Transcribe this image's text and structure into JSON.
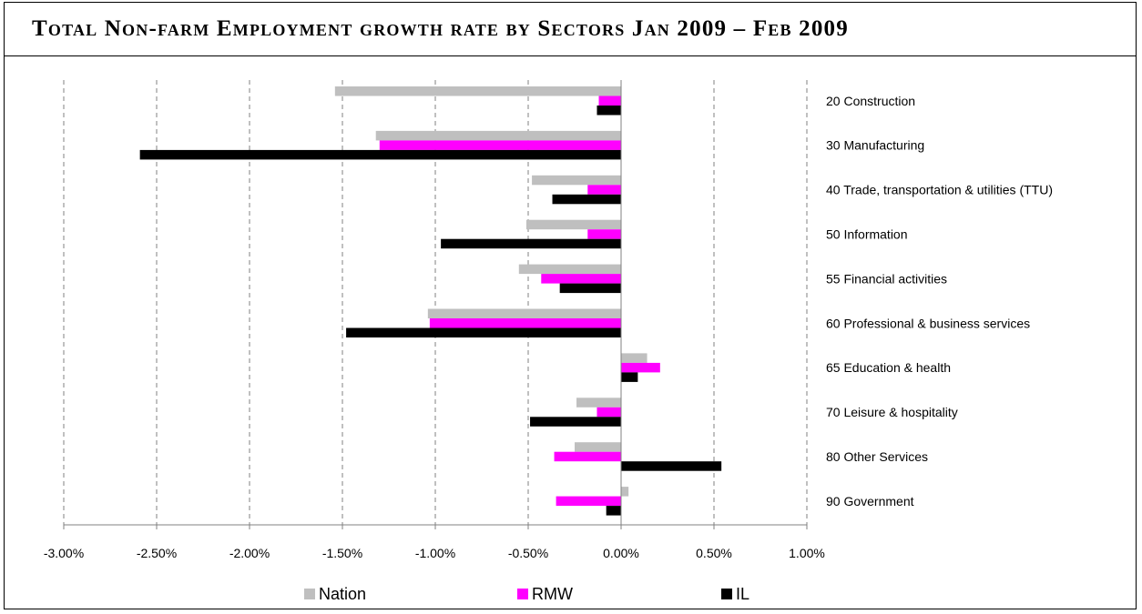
{
  "title": "Total Non-farm Employment growth rate by Sectors Jan 2009 – Feb 2009",
  "colors": {
    "Nation": "#bfbfbf",
    "RMW": "#ff00ff",
    "IL": "#000000"
  },
  "chart_data": {
    "type": "bar",
    "orientation": "horizontal",
    "title": "Total Non-farm Employment growth rate by Sectors Jan 2009 – Feb 2009",
    "categories": [
      "20 Construction",
      "30 Manufacturing",
      "40 Trade, transportation & utilities (TTU)",
      "50 Information",
      "55 Financial activities",
      "60 Professional & business services",
      "65 Education & health",
      "70 Leisure & hospitality",
      "80 Other Services",
      "90 Government"
    ],
    "series": [
      {
        "name": "Nation",
        "values": [
          -1.54,
          -1.32,
          -0.48,
          -0.51,
          -0.55,
          -1.04,
          0.14,
          -0.24,
          -0.25,
          0.04
        ]
      },
      {
        "name": "RMW",
        "values": [
          -0.12,
          -1.3,
          -0.18,
          -0.18,
          -0.43,
          -1.03,
          0.21,
          -0.13,
          -0.36,
          -0.35
        ]
      },
      {
        "name": "IL",
        "values": [
          -0.13,
          -2.59,
          -0.37,
          -0.97,
          -0.33,
          -1.48,
          0.09,
          -0.49,
          0.54,
          -0.08
        ]
      }
    ],
    "xlim": [
      -3.0,
      1.0
    ],
    "x_ticks": [
      "-3.00%",
      "-2.50%",
      "-2.00%",
      "-1.50%",
      "-1.00%",
      "-0.50%",
      "0.00%",
      "0.50%",
      "1.00%"
    ],
    "x_tick_values": [
      -3.0,
      -2.5,
      -2.0,
      -1.5,
      -1.0,
      -0.5,
      0.0,
      0.5,
      1.0
    ],
    "units": "%",
    "grid": "vertical-dashed",
    "legend": {
      "position": "bottom",
      "entries": [
        "Nation",
        "RMW",
        "IL"
      ]
    }
  }
}
